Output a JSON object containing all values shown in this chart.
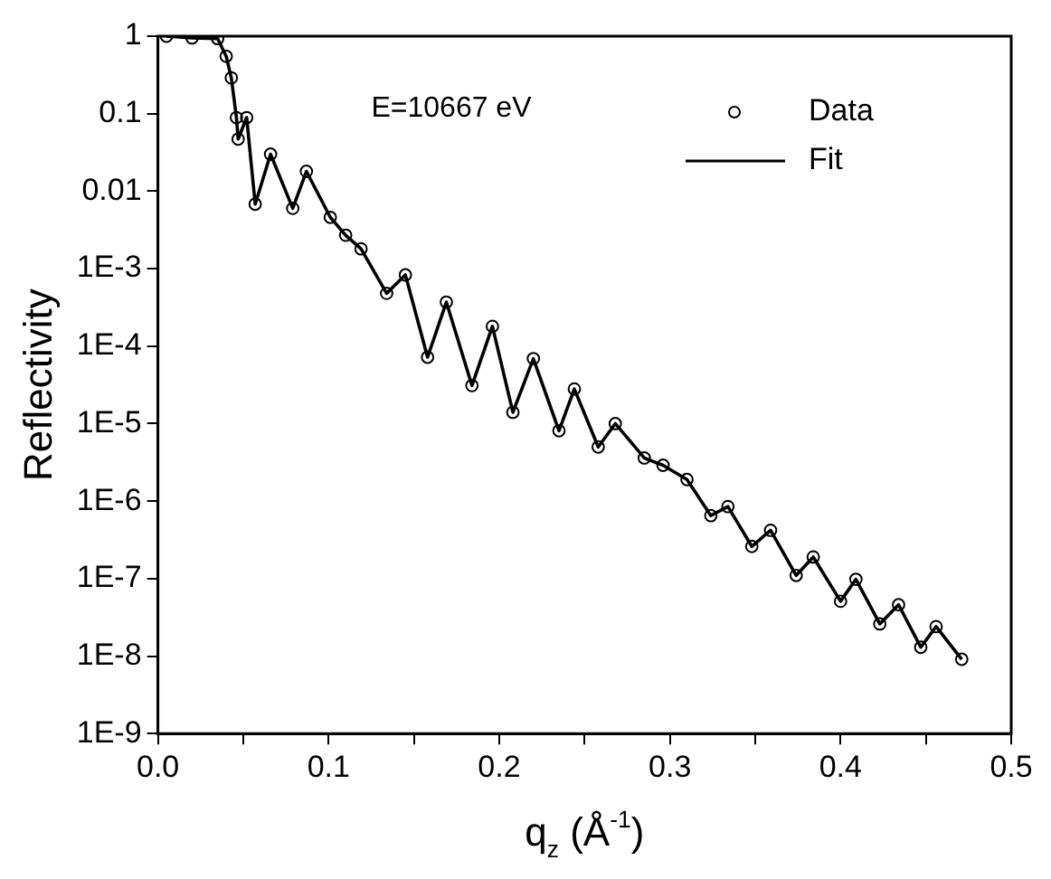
{
  "chart_data": {
    "type": "scatter",
    "xlabel": "q$_{z}$ (Å$^{-1}$)",
    "ylabel": "Reflectivity",
    "annotations": [
      "E=10667 eV"
    ],
    "log": "y",
    "grid": false,
    "legend": "top right",
    "x": [
      0.005,
      0.02,
      0.035,
      0.04,
      0.043,
      0.046,
      0.047,
      0.052,
      0.057,
      0.066,
      0.079,
      0.087,
      0.101,
      0.11,
      0.119,
      0.134,
      0.145,
      0.158,
      0.169,
      0.184,
      0.196,
      0.208,
      0.22,
      0.235,
      0.244,
      0.258,
      0.268,
      0.285,
      0.296,
      0.31,
      0.324,
      0.334,
      0.348,
      0.359,
      0.374,
      0.384,
      0.4,
      0.409,
      0.423,
      0.434,
      0.447,
      0.456,
      0.471
    ],
    "series": [
      {
        "name": "Data",
        "marker": "circle",
        "color": "#000000",
        "values": [
          1,
          0.95,
          0.93,
          0.55,
          0.29,
          0.089,
          0.047,
          0.089,
          0.0068,
          0.03,
          0.006,
          0.018,
          0.0046,
          0.0027,
          0.0018,
          0.00048,
          0.00083,
          7.2e-05,
          0.00037,
          3.1e-05,
          0.00018,
          1.4e-05,
          6.9e-05,
          8.1e-06,
          2.8e-05,
          5e-06,
          1e-05,
          3.6e-06,
          2.9e-06,
          1.9e-06,
          6.5e-07,
          8.5e-07,
          2.6e-07,
          4.2e-07,
          1.1e-07,
          1.9e-07,
          5.1e-08,
          9.8e-08,
          2.6e-08,
          4.6e-08,
          1.3e-08,
          2.4e-08,
          9.1e-09
        ]
      },
      {
        "name": "Fit",
        "type": "line",
        "marker": "none",
        "line_style": "solid",
        "color": "#000000",
        "values": [
          1,
          0.95,
          0.93,
          0.55,
          0.29,
          0.089,
          0.047,
          0.089,
          0.0068,
          0.03,
          0.006,
          0.018,
          0.0046,
          0.0027,
          0.0018,
          0.00048,
          0.00083,
          7.2e-05,
          0.00037,
          3.1e-05,
          0.00018,
          1.4e-05,
          6.9e-05,
          8.1e-06,
          2.8e-05,
          5e-06,
          1e-05,
          3.6e-06,
          2.9e-06,
          1.9e-06,
          6.5e-07,
          8.5e-07,
          2.6e-07,
          4.2e-07,
          1.1e-07,
          1.9e-07,
          5.1e-08,
          9.8e-08,
          2.6e-08,
          4.6e-08,
          1.3e-08,
          2.4e-08,
          9.1e-09
        ]
      }
    ],
    "xlim": [
      0,
      0.5
    ],
    "xticks": [
      {
        "value": 0,
        "label": "0.0"
      },
      {
        "value": 0.05,
        "label": null
      },
      {
        "value": 0.1,
        "label": "0.1"
      },
      {
        "value": 0.15,
        "label": null
      },
      {
        "value": 0.2,
        "label": "0.2"
      },
      {
        "value": 0.25,
        "label": null
      },
      {
        "value": 0.3,
        "label": "0.3"
      },
      {
        "value": 0.35,
        "label": null
      },
      {
        "value": 0.4,
        "label": "0.4"
      },
      {
        "value": 0.45,
        "label": null
      },
      {
        "value": 0.5,
        "label": "0.5"
      }
    ],
    "ylim": [
      1e-09,
      1
    ],
    "yticks": [
      {
        "value": 1e-09,
        "label": "1E-9"
      },
      {
        "value": 1e-08,
        "label": "1E-8"
      },
      {
        "value": 1e-07,
        "label": "1E-7"
      },
      {
        "value": 1e-06,
        "label": "1E-6"
      },
      {
        "value": 1e-05,
        "label": "1E-5"
      },
      {
        "value": 0.0001,
        "label": "1E-4"
      },
      {
        "value": 0.001,
        "label": "1E-3"
      },
      {
        "value": 0.01,
        "label": "0.01"
      },
      {
        "value": 0.1,
        "label": "0.1"
      },
      1
    ]
  }
}
